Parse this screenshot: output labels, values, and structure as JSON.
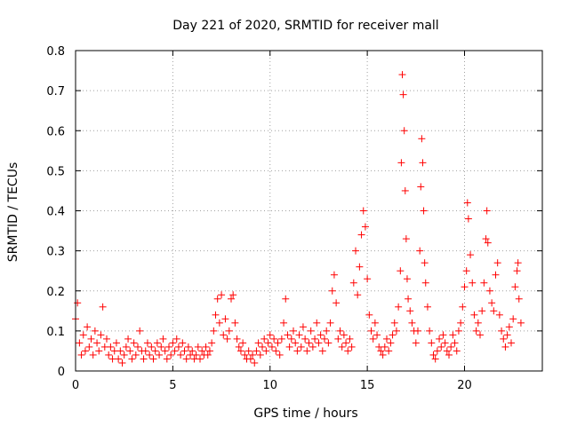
{
  "chart_data": {
    "type": "scatter",
    "title": "Day 221 of 2020, SRMTID for receiver mall",
    "xlabel": "GPS time / hours",
    "ylabel": "SRMTID / TECUs",
    "xlim": [
      0,
      24
    ],
    "ylim": [
      0,
      0.8
    ],
    "xticks": [
      0,
      5,
      10,
      15,
      20
    ],
    "xtick_labels": [
      "0",
      "5",
      "10",
      "15",
      "20"
    ],
    "yticks": [
      0,
      0.1,
      0.2,
      0.3,
      0.4,
      0.5,
      0.6,
      0.7,
      0.8
    ],
    "ytick_labels": [
      "0",
      "0.1",
      "0.2",
      "0.3",
      "0.4",
      "0.5",
      "0.6",
      "0.7",
      "0.8"
    ],
    "grid": true,
    "marker": "+",
    "color": "#ff0000",
    "series": [
      {
        "name": "SRMTID",
        "points": [
          [
            0.0,
            0.13
          ],
          [
            0.1,
            0.17
          ],
          [
            0.2,
            0.07
          ],
          [
            0.3,
            0.04
          ],
          [
            0.4,
            0.09
          ],
          [
            0.5,
            0.05
          ],
          [
            0.6,
            0.11
          ],
          [
            0.7,
            0.06
          ],
          [
            0.8,
            0.08
          ],
          [
            0.9,
            0.04
          ],
          [
            1.0,
            0.1
          ],
          [
            1.1,
            0.07
          ],
          [
            1.2,
            0.05
          ],
          [
            1.3,
            0.09
          ],
          [
            1.4,
            0.16
          ],
          [
            1.5,
            0.06
          ],
          [
            1.6,
            0.08
          ],
          [
            1.7,
            0.04
          ],
          [
            1.8,
            0.06
          ],
          [
            1.9,
            0.03
          ],
          [
            2.0,
            0.05
          ],
          [
            2.1,
            0.07
          ],
          [
            2.2,
            0.03
          ],
          [
            2.3,
            0.05
          ],
          [
            2.4,
            0.02
          ],
          [
            2.5,
            0.04
          ],
          [
            2.6,
            0.06
          ],
          [
            2.7,
            0.08
          ],
          [
            2.8,
            0.05
          ],
          [
            2.9,
            0.03
          ],
          [
            3.0,
            0.07
          ],
          [
            3.1,
            0.04
          ],
          [
            3.2,
            0.06
          ],
          [
            3.3,
            0.1
          ],
          [
            3.4,
            0.05
          ],
          [
            3.5,
            0.03
          ],
          [
            3.6,
            0.05
          ],
          [
            3.7,
            0.07
          ],
          [
            3.8,
            0.04
          ],
          [
            3.9,
            0.06
          ],
          [
            4.0,
            0.03
          ],
          [
            4.1,
            0.05
          ],
          [
            4.2,
            0.07
          ],
          [
            4.3,
            0.04
          ],
          [
            4.4,
            0.06
          ],
          [
            4.5,
            0.08
          ],
          [
            4.6,
            0.05
          ],
          [
            4.7,
            0.03
          ],
          [
            4.8,
            0.06
          ],
          [
            4.9,
            0.04
          ],
          [
            5.0,
            0.07
          ],
          [
            5.1,
            0.05
          ],
          [
            5.2,
            0.08
          ],
          [
            5.3,
            0.06
          ],
          [
            5.4,
            0.04
          ],
          [
            5.5,
            0.07
          ],
          [
            5.6,
            0.05
          ],
          [
            5.7,
            0.03
          ],
          [
            5.8,
            0.06
          ],
          [
            5.9,
            0.04
          ],
          [
            6.0,
            0.05
          ],
          [
            6.1,
            0.03
          ],
          [
            6.2,
            0.04
          ],
          [
            6.3,
            0.06
          ],
          [
            6.4,
            0.03
          ],
          [
            6.5,
            0.05
          ],
          [
            6.6,
            0.04
          ],
          [
            6.7,
            0.06
          ],
          [
            6.8,
            0.04
          ],
          [
            6.9,
            0.05
          ],
          [
            7.0,
            0.07
          ],
          [
            7.1,
            0.1
          ],
          [
            7.2,
            0.14
          ],
          [
            7.3,
            0.18
          ],
          [
            7.4,
            0.12
          ],
          [
            7.5,
            0.19
          ],
          [
            7.6,
            0.09
          ],
          [
            7.7,
            0.13
          ],
          [
            7.8,
            0.08
          ],
          [
            7.9,
            0.1
          ],
          [
            8.0,
            0.18
          ],
          [
            8.1,
            0.19
          ],
          [
            8.2,
            0.12
          ],
          [
            8.3,
            0.08
          ],
          [
            8.4,
            0.06
          ],
          [
            8.5,
            0.05
          ],
          [
            8.6,
            0.07
          ],
          [
            8.7,
            0.04
          ],
          [
            8.8,
            0.03
          ],
          [
            8.9,
            0.05
          ],
          [
            9.0,
            0.03
          ],
          [
            9.1,
            0.04
          ],
          [
            9.2,
            0.02
          ],
          [
            9.3,
            0.05
          ],
          [
            9.4,
            0.07
          ],
          [
            9.5,
            0.04
          ],
          [
            9.6,
            0.06
          ],
          [
            9.7,
            0.08
          ],
          [
            9.8,
            0.05
          ],
          [
            9.9,
            0.07
          ],
          [
            10.0,
            0.09
          ],
          [
            10.1,
            0.06
          ],
          [
            10.2,
            0.08
          ],
          [
            10.3,
            0.05
          ],
          [
            10.4,
            0.07
          ],
          [
            10.5,
            0.04
          ],
          [
            10.6,
            0.08
          ],
          [
            10.7,
            0.12
          ],
          [
            10.8,
            0.18
          ],
          [
            10.9,
            0.09
          ],
          [
            11.0,
            0.06
          ],
          [
            11.1,
            0.08
          ],
          [
            11.2,
            0.1
          ],
          [
            11.3,
            0.07
          ],
          [
            11.4,
            0.05
          ],
          [
            11.5,
            0.09
          ],
          [
            11.6,
            0.06
          ],
          [
            11.7,
            0.11
          ],
          [
            11.8,
            0.08
          ],
          [
            11.9,
            0.05
          ],
          [
            12.0,
            0.07
          ],
          [
            12.1,
            0.1
          ],
          [
            12.2,
            0.06
          ],
          [
            12.3,
            0.08
          ],
          [
            12.4,
            0.12
          ],
          [
            12.5,
            0.07
          ],
          [
            12.6,
            0.09
          ],
          [
            12.7,
            0.05
          ],
          [
            12.8,
            0.08
          ],
          [
            12.9,
            0.1
          ],
          [
            13.0,
            0.07
          ],
          [
            13.1,
            0.12
          ],
          [
            13.2,
            0.2
          ],
          [
            13.3,
            0.24
          ],
          [
            13.4,
            0.17
          ],
          [
            13.5,
            0.08
          ],
          [
            13.6,
            0.1
          ],
          [
            13.7,
            0.06
          ],
          [
            13.8,
            0.09
          ],
          [
            13.9,
            0.07
          ],
          [
            14.0,
            0.05
          ],
          [
            14.1,
            0.08
          ],
          [
            14.2,
            0.06
          ],
          [
            14.3,
            0.22
          ],
          [
            14.4,
            0.3
          ],
          [
            14.5,
            0.19
          ],
          [
            14.6,
            0.26
          ],
          [
            14.7,
            0.34
          ],
          [
            14.8,
            0.4
          ],
          [
            14.9,
            0.36
          ],
          [
            15.0,
            0.23
          ],
          [
            15.1,
            0.14
          ],
          [
            15.2,
            0.1
          ],
          [
            15.3,
            0.08
          ],
          [
            15.4,
            0.12
          ],
          [
            15.5,
            0.09
          ],
          [
            15.6,
            0.06
          ],
          [
            15.7,
            0.05
          ],
          [
            15.8,
            0.04
          ],
          [
            15.9,
            0.06
          ],
          [
            16.0,
            0.08
          ],
          [
            16.1,
            0.05
          ],
          [
            16.2,
            0.07
          ],
          [
            16.3,
            0.09
          ],
          [
            16.4,
            0.12
          ],
          [
            16.5,
            0.1
          ],
          [
            16.6,
            0.16
          ],
          [
            16.7,
            0.25
          ],
          [
            16.75,
            0.52
          ],
          [
            16.8,
            0.74
          ],
          [
            16.85,
            0.69
          ],
          [
            16.9,
            0.6
          ],
          [
            16.95,
            0.45
          ],
          [
            17.0,
            0.33
          ],
          [
            17.05,
            0.23
          ],
          [
            17.1,
            0.18
          ],
          [
            17.2,
            0.15
          ],
          [
            17.3,
            0.12
          ],
          [
            17.4,
            0.1
          ],
          [
            17.5,
            0.07
          ],
          [
            17.6,
            0.1
          ],
          [
            17.7,
            0.3
          ],
          [
            17.75,
            0.46
          ],
          [
            17.8,
            0.58
          ],
          [
            17.85,
            0.52
          ],
          [
            17.9,
            0.4
          ],
          [
            17.95,
            0.27
          ],
          [
            18.0,
            0.22
          ],
          [
            18.1,
            0.16
          ],
          [
            18.2,
            0.1
          ],
          [
            18.3,
            0.07
          ],
          [
            18.4,
            0.04
          ],
          [
            18.5,
            0.03
          ],
          [
            18.6,
            0.05
          ],
          [
            18.7,
            0.08
          ],
          [
            18.8,
            0.06
          ],
          [
            18.9,
            0.09
          ],
          [
            19.0,
            0.07
          ],
          [
            19.1,
            0.05
          ],
          [
            19.2,
            0.04
          ],
          [
            19.3,
            0.06
          ],
          [
            19.4,
            0.09
          ],
          [
            19.5,
            0.07
          ],
          [
            19.6,
            0.05
          ],
          [
            19.7,
            0.1
          ],
          [
            19.8,
            0.12
          ],
          [
            19.9,
            0.16
          ],
          [
            20.0,
            0.21
          ],
          [
            20.1,
            0.25
          ],
          [
            20.15,
            0.42
          ],
          [
            20.2,
            0.38
          ],
          [
            20.3,
            0.29
          ],
          [
            20.4,
            0.22
          ],
          [
            20.5,
            0.14
          ],
          [
            20.6,
            0.1
          ],
          [
            20.7,
            0.12
          ],
          [
            20.8,
            0.09
          ],
          [
            20.9,
            0.15
          ],
          [
            21.0,
            0.22
          ],
          [
            21.1,
            0.33
          ],
          [
            21.15,
            0.4
          ],
          [
            21.2,
            0.32
          ],
          [
            21.3,
            0.2
          ],
          [
            21.4,
            0.17
          ],
          [
            21.5,
            0.15
          ],
          [
            21.6,
            0.24
          ],
          [
            21.7,
            0.27
          ],
          [
            21.8,
            0.14
          ],
          [
            21.9,
            0.1
          ],
          [
            22.0,
            0.08
          ],
          [
            22.1,
            0.06
          ],
          [
            22.2,
            0.09
          ],
          [
            22.3,
            0.11
          ],
          [
            22.4,
            0.07
          ],
          [
            22.5,
            0.13
          ],
          [
            22.6,
            0.21
          ],
          [
            22.7,
            0.25
          ],
          [
            22.75,
            0.27
          ],
          [
            22.8,
            0.18
          ],
          [
            22.9,
            0.12
          ]
        ]
      }
    ]
  }
}
